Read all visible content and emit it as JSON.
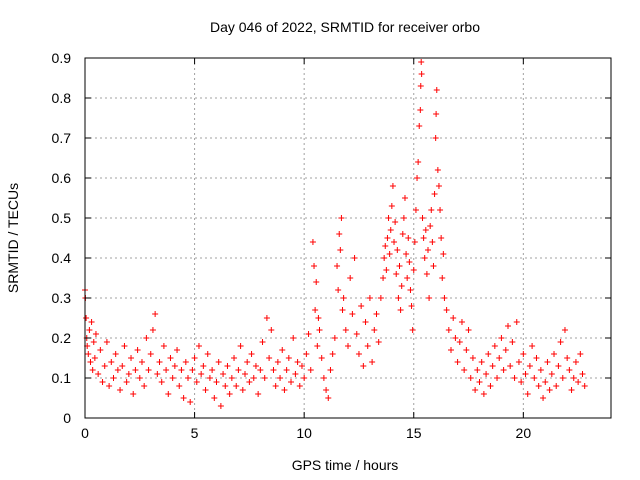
{
  "chart_data": {
    "type": "scatter",
    "title": "Day 046 of 2022, SRMTID for receiver orbo",
    "xlabel": "GPS time / hours",
    "ylabel": "SRMTID / TECUs",
    "xlim": [
      0,
      24
    ],
    "ylim": [
      0,
      0.9
    ],
    "xticks": [
      0,
      5,
      10,
      15,
      20
    ],
    "yticks": [
      0,
      0.1,
      0.2,
      0.3,
      0.4,
      0.5,
      0.6,
      0.7,
      0.8,
      0.9
    ],
    "grid": true,
    "marker": "+",
    "color": "#ff0000",
    "series": [
      {
        "name": "SRMTID",
        "points": [
          [
            0.0,
            0.32
          ],
          [
            0.02,
            0.3
          ],
          [
            0.05,
            0.25
          ],
          [
            0.08,
            0.2
          ],
          [
            0.1,
            0.18
          ],
          [
            0.15,
            0.16
          ],
          [
            0.2,
            0.22
          ],
          [
            0.25,
            0.14
          ],
          [
            0.3,
            0.24
          ],
          [
            0.35,
            0.12
          ],
          [
            0.4,
            0.19
          ],
          [
            0.45,
            0.15
          ],
          [
            0.5,
            0.21
          ],
          [
            0.6,
            0.11
          ],
          [
            0.7,
            0.17
          ],
          [
            0.8,
            0.09
          ],
          [
            0.9,
            0.13
          ],
          [
            1.0,
            0.19
          ],
          [
            1.1,
            0.08
          ],
          [
            1.2,
            0.14
          ],
          [
            1.3,
            0.1
          ],
          [
            1.4,
            0.16
          ],
          [
            1.5,
            0.12
          ],
          [
            1.6,
            0.07
          ],
          [
            1.7,
            0.13
          ],
          [
            1.8,
            0.18
          ],
          [
            1.9,
            0.09
          ],
          [
            2.0,
            0.11
          ],
          [
            2.1,
            0.15
          ],
          [
            2.2,
            0.06
          ],
          [
            2.3,
            0.12
          ],
          [
            2.4,
            0.17
          ],
          [
            2.5,
            0.1
          ],
          [
            2.6,
            0.14
          ],
          [
            2.7,
            0.08
          ],
          [
            2.8,
            0.2
          ],
          [
            2.9,
            0.12
          ],
          [
            3.0,
            0.16
          ],
          [
            3.1,
            0.22
          ],
          [
            3.2,
            0.26
          ],
          [
            3.3,
            0.11
          ],
          [
            3.4,
            0.14
          ],
          [
            3.5,
            0.09
          ],
          [
            3.6,
            0.18
          ],
          [
            3.7,
            0.12
          ],
          [
            3.8,
            0.06
          ],
          [
            3.9,
            0.15
          ],
          [
            4.0,
            0.1
          ],
          [
            4.1,
            0.13
          ],
          [
            4.2,
            0.17
          ],
          [
            4.3,
            0.08
          ],
          [
            4.4,
            0.12
          ],
          [
            4.5,
            0.05
          ],
          [
            4.6,
            0.14
          ],
          [
            4.7,
            0.1
          ],
          [
            4.8,
            0.04
          ],
          [
            4.9,
            0.12
          ],
          [
            5.0,
            0.15
          ],
          [
            5.1,
            0.09
          ],
          [
            5.2,
            0.18
          ],
          [
            5.3,
            0.11
          ],
          [
            5.4,
            0.13
          ],
          [
            5.5,
            0.07
          ],
          [
            5.6,
            0.16
          ],
          [
            5.7,
            0.1
          ],
          [
            5.8,
            0.12
          ],
          [
            5.9,
            0.05
          ],
          [
            6.0,
            0.09
          ],
          [
            6.1,
            0.14
          ],
          [
            6.2,
            0.03
          ],
          [
            6.3,
            0.11
          ],
          [
            6.4,
            0.08
          ],
          [
            6.5,
            0.13
          ],
          [
            6.6,
            0.06
          ],
          [
            6.7,
            0.1
          ],
          [
            6.8,
            0.15
          ],
          [
            6.9,
            0.08
          ],
          [
            7.0,
            0.12
          ],
          [
            7.1,
            0.18
          ],
          [
            7.2,
            0.07
          ],
          [
            7.3,
            0.11
          ],
          [
            7.4,
            0.14
          ],
          [
            7.5,
            0.09
          ],
          [
            7.6,
            0.16
          ],
          [
            7.7,
            0.1
          ],
          [
            7.8,
            0.13
          ],
          [
            7.9,
            0.06
          ],
          [
            8.0,
            0.12
          ],
          [
            8.1,
            0.19
          ],
          [
            8.2,
            0.1
          ],
          [
            8.3,
            0.25
          ],
          [
            8.4,
            0.15
          ],
          [
            8.5,
            0.22
          ],
          [
            8.6,
            0.12
          ],
          [
            8.7,
            0.08
          ],
          [
            8.8,
            0.14
          ],
          [
            8.9,
            0.1
          ],
          [
            9.0,
            0.17
          ],
          [
            9.1,
            0.07
          ],
          [
            9.2,
            0.12
          ],
          [
            9.3,
            0.15
          ],
          [
            9.4,
            0.09
          ],
          [
            9.5,
            0.2
          ],
          [
            9.6,
            0.11
          ],
          [
            9.7,
            0.14
          ],
          [
            9.8,
            0.08
          ],
          [
            9.9,
            0.13
          ],
          [
            10.0,
            0.1
          ],
          [
            10.1,
            0.16
          ],
          [
            10.2,
            0.21
          ],
          [
            10.3,
            0.12
          ],
          [
            10.4,
            0.44
          ],
          [
            10.45,
            0.38
          ],
          [
            10.5,
            0.27
          ],
          [
            10.55,
            0.34
          ],
          [
            10.6,
            0.18
          ],
          [
            10.65,
            0.25
          ],
          [
            10.7,
            0.22
          ],
          [
            10.8,
            0.15
          ],
          [
            10.9,
            0.1
          ],
          [
            11.0,
            0.07
          ],
          [
            11.1,
            0.05
          ],
          [
            11.2,
            0.12
          ],
          [
            11.3,
            0.16
          ],
          [
            11.4,
            0.2
          ],
          [
            11.5,
            0.38
          ],
          [
            11.55,
            0.32
          ],
          [
            11.6,
            0.46
          ],
          [
            11.65,
            0.42
          ],
          [
            11.7,
            0.5
          ],
          [
            11.75,
            0.27
          ],
          [
            11.8,
            0.3
          ],
          [
            11.9,
            0.22
          ],
          [
            12.0,
            0.18
          ],
          [
            12.1,
            0.35
          ],
          [
            12.2,
            0.26
          ],
          [
            12.3,
            0.4
          ],
          [
            12.4,
            0.21
          ],
          [
            12.5,
            0.16
          ],
          [
            12.6,
            0.28
          ],
          [
            12.7,
            0.13
          ],
          [
            12.8,
            0.24
          ],
          [
            12.9,
            0.18
          ],
          [
            13.0,
            0.3
          ],
          [
            13.1,
            0.14
          ],
          [
            13.2,
            0.22
          ],
          [
            13.3,
            0.26
          ],
          [
            13.4,
            0.19
          ],
          [
            13.5,
            0.3
          ],
          [
            13.6,
            0.35
          ],
          [
            13.65,
            0.4
          ],
          [
            13.7,
            0.43
          ],
          [
            13.75,
            0.37
          ],
          [
            13.8,
            0.45
          ],
          [
            13.85,
            0.5
          ],
          [
            13.9,
            0.41
          ],
          [
            13.95,
            0.47
          ],
          [
            14.0,
            0.53
          ],
          [
            14.05,
            0.58
          ],
          [
            14.1,
            0.44
          ],
          [
            14.15,
            0.49
          ],
          [
            14.2,
            0.36
          ],
          [
            14.25,
            0.42
          ],
          [
            14.3,
            0.3
          ],
          [
            14.35,
            0.38
          ],
          [
            14.4,
            0.27
          ],
          [
            14.45,
            0.33
          ],
          [
            14.5,
            0.46
          ],
          [
            14.55,
            0.5
          ],
          [
            14.6,
            0.55
          ],
          [
            14.65,
            0.41
          ],
          [
            14.7,
            0.35
          ],
          [
            14.75,
            0.45
          ],
          [
            14.8,
            0.39
          ],
          [
            14.85,
            0.32
          ],
          [
            14.9,
            0.28
          ],
          [
            14.95,
            0.22
          ],
          [
            15.0,
            0.37
          ],
          [
            15.05,
            0.44
          ],
          [
            15.1,
            0.52
          ],
          [
            15.15,
            0.6
          ],
          [
            15.2,
            0.64
          ],
          [
            15.25,
            0.73
          ],
          [
            15.3,
            0.77
          ],
          [
            15.32,
            0.83
          ],
          [
            15.34,
            0.89
          ],
          [
            15.36,
            0.86
          ],
          [
            15.4,
            0.5
          ],
          [
            15.45,
            0.45
          ],
          [
            15.5,
            0.4
          ],
          [
            15.55,
            0.47
          ],
          [
            15.6,
            0.36
          ],
          [
            15.65,
            0.42
          ],
          [
            15.7,
            0.3
          ],
          [
            15.75,
            0.48
          ],
          [
            15.8,
            0.52
          ],
          [
            15.85,
            0.44
          ],
          [
            15.9,
            0.38
          ],
          [
            15.95,
            0.56
          ],
          [
            16.0,
            0.7
          ],
          [
            16.02,
            0.76
          ],
          [
            16.05,
            0.82
          ],
          [
            16.1,
            0.62
          ],
          [
            16.15,
            0.58
          ],
          [
            16.2,
            0.52
          ],
          [
            16.25,
            0.45
          ],
          [
            16.3,
            0.35
          ],
          [
            16.35,
            0.41
          ],
          [
            16.4,
            0.3
          ],
          [
            16.5,
            0.27
          ],
          [
            16.6,
            0.22
          ],
          [
            16.7,
            0.17
          ],
          [
            16.8,
            0.25
          ],
          [
            16.9,
            0.2
          ],
          [
            17.0,
            0.14
          ],
          [
            17.1,
            0.19
          ],
          [
            17.2,
            0.24
          ],
          [
            17.3,
            0.12
          ],
          [
            17.4,
            0.17
          ],
          [
            17.5,
            0.22
          ],
          [
            17.6,
            0.1
          ],
          [
            17.7,
            0.15
          ],
          [
            17.8,
            0.07
          ],
          [
            17.9,
            0.12
          ],
          [
            18.0,
            0.09
          ],
          [
            18.1,
            0.14
          ],
          [
            18.2,
            0.06
          ],
          [
            18.3,
            0.11
          ],
          [
            18.4,
            0.16
          ],
          [
            18.5,
            0.08
          ],
          [
            18.6,
            0.13
          ],
          [
            18.7,
            0.18
          ],
          [
            18.8,
            0.1
          ],
          [
            18.9,
            0.15
          ],
          [
            19.0,
            0.2
          ],
          [
            19.1,
            0.12
          ],
          [
            19.2,
            0.17
          ],
          [
            19.3,
            0.23
          ],
          [
            19.4,
            0.13
          ],
          [
            19.5,
            0.19
          ],
          [
            19.6,
            0.1
          ],
          [
            19.7,
            0.24
          ],
          [
            19.8,
            0.14
          ],
          [
            19.9,
            0.09
          ],
          [
            20.0,
            0.16
          ],
          [
            20.1,
            0.11
          ],
          [
            20.2,
            0.06
          ],
          [
            20.3,
            0.13
          ],
          [
            20.4,
            0.18
          ],
          [
            20.5,
            0.1
          ],
          [
            20.6,
            0.15
          ],
          [
            20.7,
            0.08
          ],
          [
            20.8,
            0.12
          ],
          [
            20.9,
            0.05
          ],
          [
            21.0,
            0.09
          ],
          [
            21.1,
            0.14
          ],
          [
            21.2,
            0.07
          ],
          [
            21.3,
            0.11
          ],
          [
            21.4,
            0.16
          ],
          [
            21.5,
            0.08
          ],
          [
            21.6,
            0.13
          ],
          [
            21.7,
            0.19
          ],
          [
            21.8,
            0.1
          ],
          [
            21.9,
            0.22
          ],
          [
            22.0,
            0.15
          ],
          [
            22.1,
            0.12
          ],
          [
            22.2,
            0.07
          ],
          [
            22.3,
            0.1
          ],
          [
            22.4,
            0.14
          ],
          [
            22.5,
            0.09
          ],
          [
            22.6,
            0.16
          ],
          [
            22.7,
            0.11
          ],
          [
            22.8,
            0.08
          ]
        ]
      }
    ]
  }
}
